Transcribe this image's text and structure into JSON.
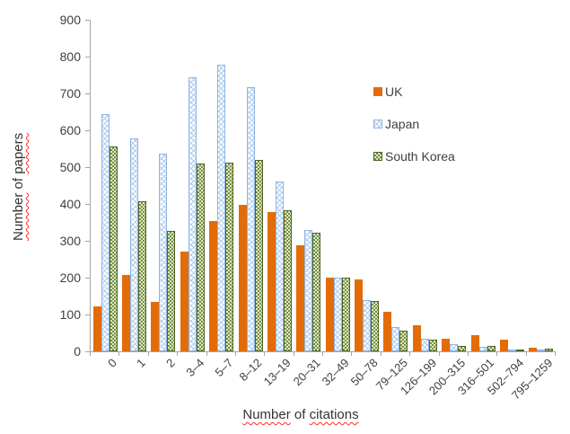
{
  "chart_data": {
    "type": "bar",
    "title": "",
    "xlabel": "Number of citations",
    "ylabel": "Number of papers",
    "spellcheck_underlined_words": [
      "Number",
      "papers",
      "citations"
    ],
    "categories": [
      "0",
      "1",
      "2",
      "3–4",
      "5–7",
      "8–12",
      "13–19",
      "20–31",
      "32–49",
      "50–78",
      "79–125",
      "126–199",
      "200–315",
      "316–501",
      "502–794",
      "795–1259"
    ],
    "series": [
      {
        "name": "UK",
        "pattern": "solid",
        "color": "#E36C09",
        "values": [
          122,
          208,
          133,
          270,
          353,
          398,
          377,
          287,
          201,
          195,
          108,
          70,
          34,
          44,
          32,
          10
        ]
      },
      {
        "name": "Japan",
        "pattern": "diagonal-crosshatch",
        "color": "#8EB4E3",
        "values": [
          645,
          577,
          537,
          745,
          777,
          717,
          461,
          330,
          200,
          139,
          67,
          33,
          20,
          12,
          3,
          6
        ]
      },
      {
        "name": "South Korea",
        "pattern": "checkerboard",
        "color": "#76923C",
        "values": [
          557,
          407,
          328,
          509,
          511,
          520,
          382,
          323,
          200,
          137,
          55,
          31,
          15,
          14,
          6,
          7
        ]
      }
    ],
    "ylim": [
      0,
      900
    ],
    "ytick_step": 100,
    "grid": false,
    "legend_position": "inside-right",
    "axis_color": "#A6A6A6",
    "text_color": "#3F3F3F"
  }
}
